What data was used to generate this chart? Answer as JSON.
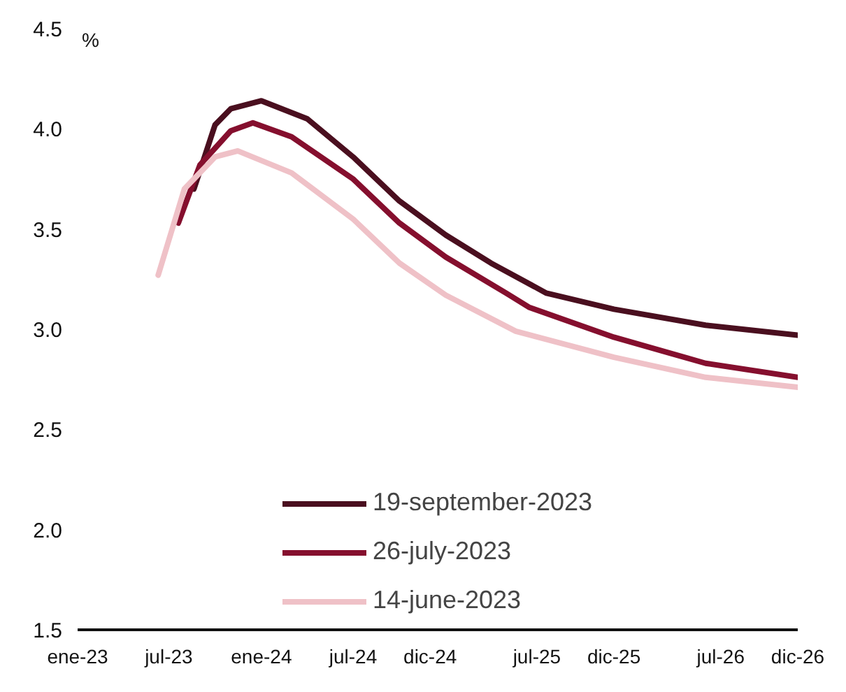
{
  "chart_data": {
    "type": "line",
    "ylabel": "%",
    "xlim": [
      "2023-01",
      "2026-12"
    ],
    "xticks": [
      {
        "value": "2023-01",
        "label": "ene-23"
      },
      {
        "value": "2023-07",
        "label": "jul-23"
      },
      {
        "value": "2024-01",
        "label": "ene-24"
      },
      {
        "value": "2024-07",
        "label": "jul-24"
      },
      {
        "value": "2024-12",
        "label": "dic-24"
      },
      {
        "value": "2025-07",
        "label": "jul-25"
      },
      {
        "value": "2025-12",
        "label": "dic-25"
      },
      {
        "value": "2026-07",
        "label": "jul-26"
      },
      {
        "value": "2026-12",
        "label": "dic-26"
      }
    ],
    "ylim": [
      1.5,
      4.5
    ],
    "yticks": [
      {
        "value": 1.5,
        "label": "1.5"
      },
      {
        "value": 2.0,
        "label": "2.0"
      },
      {
        "value": 2.5,
        "label": "2.5"
      },
      {
        "value": 3.0,
        "label": "3.0"
      },
      {
        "value": 3.5,
        "label": "3.5"
      },
      {
        "value": 4.0,
        "label": "4.0"
      },
      {
        "value": 4.5,
        "label": "4.5"
      }
    ],
    "grid": false,
    "legend": "bottom",
    "line_style": "solid",
    "series": [
      {
        "name": "19-september-2023",
        "color": "#4a0f1f",
        "x": [
          "2023-08-20",
          "2023-10",
          "2023-11",
          "2024-01",
          "2024-04",
          "2024-07",
          "2024-10",
          "2025-01",
          "2025-04",
          "2025-07-20",
          "2025-12",
          "2026-06",
          "2026-12"
        ],
        "values": [
          3.7,
          4.02,
          4.1,
          4.14,
          4.05,
          3.86,
          3.64,
          3.47,
          3.33,
          3.18,
          3.1,
          3.02,
          2.97
        ]
      },
      {
        "name": "26-july-2023",
        "color": "#850f2e",
        "x": [
          "2023-07-20",
          "2023-09",
          "2023-11",
          "2023-12-15",
          "2024-03",
          "2024-07",
          "2024-10",
          "2025-01",
          "2025-05",
          "2025-06-15",
          "2025-12",
          "2026-06",
          "2026-12"
        ],
        "values": [
          3.53,
          3.82,
          3.99,
          4.03,
          3.96,
          3.75,
          3.53,
          3.36,
          3.18,
          3.11,
          2.96,
          2.83,
          2.76
        ]
      },
      {
        "name": "14-june-2023",
        "color": "#efc1c7",
        "x": [
          "2023-06-10",
          "2023-08",
          "2023-10",
          "2023-11-15",
          "2024-03",
          "2024-07",
          "2024-10",
          "2025-01",
          "2025-05-20",
          "2025-12",
          "2026-06",
          "2026-12"
        ],
        "values": [
          3.27,
          3.7,
          3.86,
          3.89,
          3.78,
          3.55,
          3.33,
          3.17,
          2.99,
          2.86,
          2.76,
          2.71
        ]
      }
    ]
  }
}
